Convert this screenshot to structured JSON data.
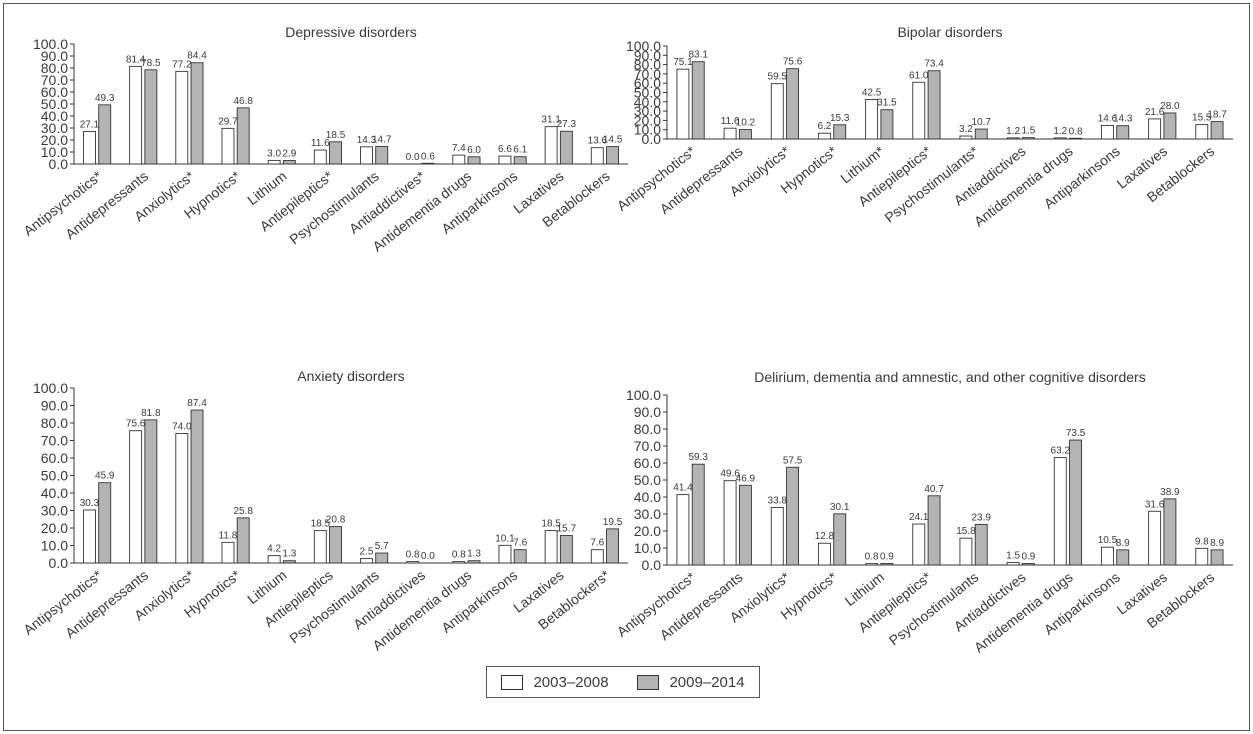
{
  "series_names": [
    "2003–2008",
    "2009–2014"
  ],
  "series_colors": [
    "#ffffff",
    "#b4b4b4"
  ],
  "chart_data": [
    {
      "type": "bar",
      "title": "Depressive disorders",
      "ylim": [
        0,
        100
      ],
      "ytick_labels": [
        "0.0",
        "10.0",
        "20.0",
        "30.0",
        "40.0",
        "50.0",
        "60.0",
        "70.0",
        "80.0",
        "90.0",
        "100.0"
      ],
      "categories": [
        "Antipsychotics*",
        "Antidepressants",
        "Anxiolytics*",
        "Hypnotics*",
        "Lithium",
        "Antiepileptics*",
        "Psychostimulants",
        "Antiaddictives*",
        "Antidementia drugs",
        "Antiparkinsons",
        "Laxatives",
        "Betablockers"
      ],
      "series": [
        {
          "values": [
            27.1,
            81.4,
            77.2,
            29.7,
            3.0,
            11.6,
            14.3,
            0.0,
            7.4,
            6.6,
            31.1,
            13.6
          ],
          "labels": [
            "27.1",
            "81.4",
            "77.2",
            "29.7",
            "3.0",
            "11.6",
            "14.3",
            "0.0",
            "7.4",
            "6.6",
            "31.1",
            "13.6"
          ]
        },
        {
          "values": [
            49.3,
            78.5,
            84.4,
            46.8,
            2.9,
            18.5,
            14.7,
            0.6,
            6.0,
            6.1,
            27.3,
            14.5
          ],
          "labels": [
            "49.3",
            "78.5",
            "84.4",
            "46.8",
            "2.9",
            "18.5",
            "14.7",
            "0.6",
            "6.0",
            "6.1",
            "27.3",
            "14.5"
          ]
        }
      ]
    },
    {
      "type": "bar",
      "title": "Bipolar disorders",
      "ylim": [
        0,
        100
      ],
      "ytick_labels": [
        "0.0",
        "10.0",
        "20.0",
        "30.0",
        "40.0",
        "50.0",
        "60.0",
        "70.0",
        "80.0",
        "90.0",
        "100.0"
      ],
      "categories": [
        "Antipsychotics*",
        "Antidepressants",
        "Anxiolytics*",
        "Hypnotics*",
        "Lithium*",
        "Antiepileptics*",
        "Psychostimulants*",
        "Antiaddictives",
        "Antidementia drugs",
        "Antiparkinsons",
        "Laxatives",
        "Betablockers"
      ],
      "series": [
        {
          "values": [
            75.1,
            11.6,
            59.5,
            6.2,
            42.5,
            61.0,
            3.2,
            1.2,
            1.2,
            14.6,
            21.6,
            15.5
          ],
          "labels": [
            "75.1",
            "11.6",
            "59.5",
            "6.2",
            "42.5",
            "61.0",
            "3.2",
            "1.2",
            "1.2",
            "14.6",
            "21.6",
            "15.5"
          ]
        },
        {
          "values": [
            83.1,
            10.2,
            75.6,
            15.3,
            31.5,
            73.4,
            10.7,
            1.5,
            0.8,
            14.3,
            28.0,
            18.7
          ],
          "labels": [
            "83.1",
            "10.2",
            "75.6",
            "15.3",
            "31.5",
            "73.4",
            "10.7",
            "1.5",
            "0.8",
            "14.3",
            "28.0",
            "18.7"
          ]
        }
      ]
    },
    {
      "type": "bar",
      "title": "Anxiety disorders",
      "ylim": [
        0,
        100
      ],
      "ytick_labels": [
        "0.0",
        "10.0",
        "20.0",
        "30.0",
        "40.0",
        "50.0",
        "60.0",
        "70.0",
        "80.0",
        "90.0",
        "100.0"
      ],
      "categories": [
        "Antipsychotics*",
        "Antidepressants",
        "Anxiolytics*",
        "Hypnotics*",
        "Lithium",
        "Antiepileptics",
        "Psychostimulants",
        "Antiaddictives",
        "Antidementia drugs",
        "Antiparkinsons",
        "Laxatives",
        "Betablockers*"
      ],
      "series": [
        {
          "values": [
            30.3,
            75.6,
            74.0,
            11.8,
            4.2,
            18.5,
            2.5,
            0.8,
            0.8,
            10.1,
            18.5,
            7.6
          ],
          "labels": [
            "30.3",
            "75.6",
            "74.0",
            "11.8",
            "4.2",
            "18.5",
            "2.5",
            "0.8",
            "0.8",
            "10.1",
            "18.5",
            "7.6"
          ]
        },
        {
          "values": [
            45.9,
            81.8,
            87.4,
            25.8,
            1.3,
            20.8,
            5.7,
            0.0,
            1.3,
            7.6,
            15.7,
            19.5
          ],
          "labels": [
            "45.9",
            "81.8",
            "87.4",
            "25.8",
            "1.3",
            "20.8",
            "5.7",
            "0.0",
            "1.3",
            "7.6",
            "15.7",
            "19.5"
          ]
        }
      ]
    },
    {
      "type": "bar",
      "title": "Delirium, dementia and amnestic, and other cognitive disorders",
      "ylim": [
        0,
        100
      ],
      "ytick_labels": [
        "0.0",
        "10.0",
        "20.0",
        "30.0",
        "40.0",
        "50.0",
        "60.0",
        "70.0",
        "80.0",
        "90.0",
        "100.0"
      ],
      "categories": [
        "Antipsychotics*",
        "Antidepressants",
        "Anxiolytics*",
        "Hypnotics*",
        "Lithium",
        "Antiepileptics*",
        "Psychostimulants",
        "Antiaddictives",
        "Antidementia drugs",
        "Antiparkinsons",
        "Laxatives",
        "Betablockers"
      ],
      "series": [
        {
          "values": [
            41.4,
            49.6,
            33.8,
            12.8,
            0.8,
            24.1,
            15.8,
            1.5,
            63.2,
            10.5,
            31.6,
            9.8
          ],
          "labels": [
            "41.4",
            "49.6",
            "33.8",
            "12.8",
            "0.8",
            "24.1",
            "15.8",
            "1.5",
            "63.2",
            "10.5",
            "31.6",
            "9.8"
          ]
        },
        {
          "values": [
            59.3,
            46.9,
            57.5,
            30.1,
            0.9,
            40.7,
            23.9,
            0.9,
            73.5,
            8.9,
            38.9,
            8.9
          ],
          "labels": [
            "59.3",
            "46.9",
            "57.5",
            "30.1",
            "0.9",
            "40.7",
            "23.9",
            "0.9",
            "73.5",
            "8.9",
            "38.9",
            "8.9"
          ]
        }
      ]
    }
  ]
}
